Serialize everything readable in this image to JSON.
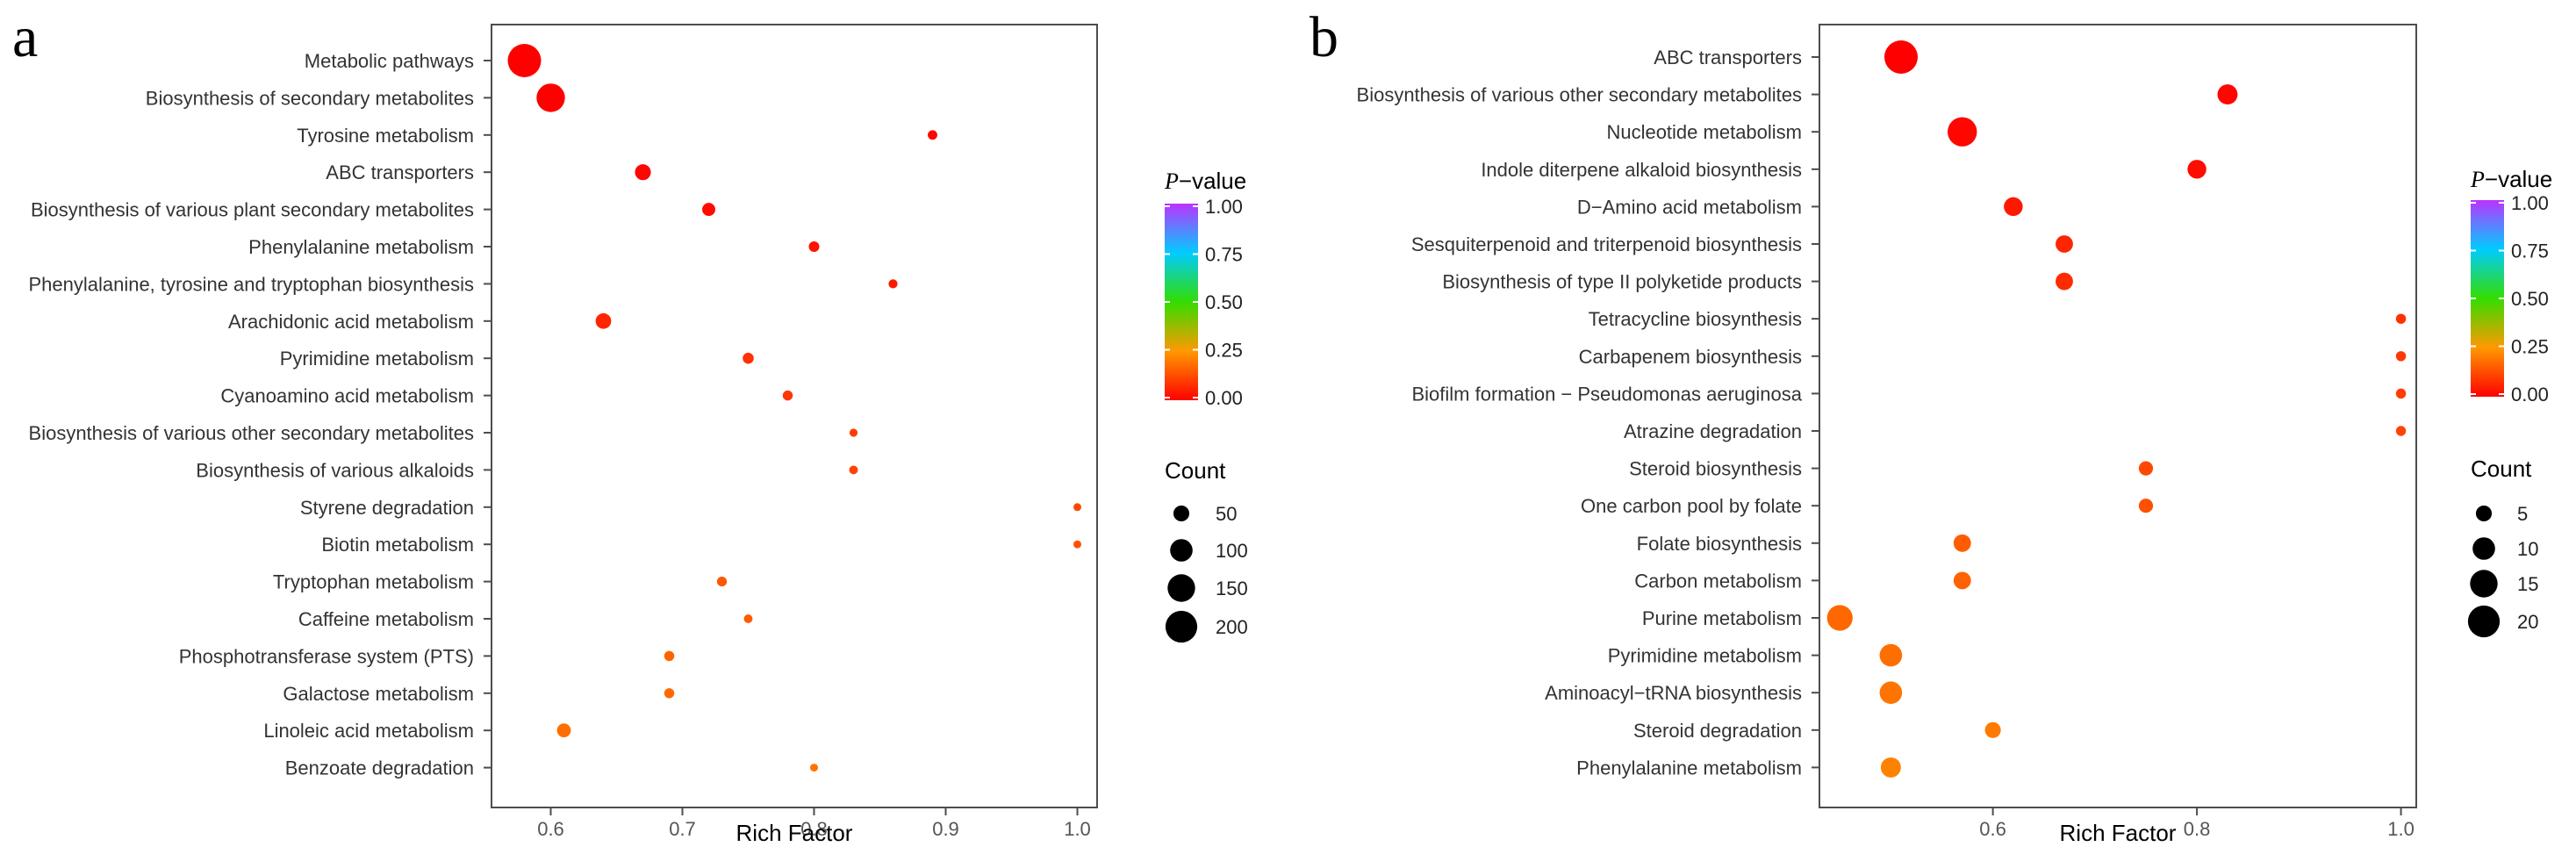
{
  "colors": {
    "scale_stops": [
      {
        "v": 0.0,
        "c": "#ff0000"
      },
      {
        "v": 0.25,
        "c": "#ff9900"
      },
      {
        "v": 0.5,
        "c": "#33dd00"
      },
      {
        "v": 0.75,
        "c": "#00ccff"
      },
      {
        "v": 1.0,
        "c": "#bb33ff"
      }
    ]
  },
  "chart_data": [
    {
      "panel": "a",
      "type": "scatter",
      "xlabel": "Rich Factor",
      "xlim": [
        0.555,
        1.015
      ],
      "xticks": [
        "0.6",
        "0.7",
        "0.8",
        "0.9",
        "1.0"
      ],
      "xtick_values": [
        0.6,
        0.7,
        0.8,
        0.9,
        1.0
      ],
      "legend_color_title_italic": "P",
      "legend_color_title_rest": "−value",
      "legend_color_ticks": [
        "1.00",
        "0.75",
        "0.50",
        "0.25",
        "0.00"
      ],
      "legend_size_title": "Count",
      "legend_size_entries": [
        {
          "label": "50",
          "value": 50
        },
        {
          "label": "100",
          "value": 100
        },
        {
          "label": "150",
          "value": 150
        },
        {
          "label": "200",
          "value": 200
        }
      ],
      "count_max": 220,
      "points": [
        {
          "term": "Metabolic pathways",
          "rich_factor": 0.58,
          "count": 220,
          "p_value": 0.0
        },
        {
          "term": "Biosynthesis of secondary metabolites",
          "rich_factor": 0.6,
          "count": 160,
          "p_value": 0.0
        },
        {
          "term": "Tyrosine metabolism",
          "rich_factor": 0.89,
          "count": 18,
          "p_value": 0.01
        },
        {
          "term": "ABC transporters",
          "rich_factor": 0.67,
          "count": 50,
          "p_value": 0.01
        },
        {
          "term": "Biosynthesis of various plant secondary metabolites",
          "rich_factor": 0.72,
          "count": 34,
          "p_value": 0.02
        },
        {
          "term": "Phenylalanine metabolism",
          "rich_factor": 0.8,
          "count": 22,
          "p_value": 0.03
        },
        {
          "term": "Phenylalanine, tyrosine and tryptophan biosynthesis",
          "rich_factor": 0.86,
          "count": 16,
          "p_value": 0.04
        },
        {
          "term": "Arachidonic acid metabolism",
          "rich_factor": 0.64,
          "count": 48,
          "p_value": 0.06
        },
        {
          "term": "Pyrimidine metabolism",
          "rich_factor": 0.75,
          "count": 24,
          "p_value": 0.08
        },
        {
          "term": "Cyanoamino acid metabolism",
          "rich_factor": 0.78,
          "count": 20,
          "p_value": 0.09
        },
        {
          "term": "Biosynthesis of various other secondary metabolites",
          "rich_factor": 0.83,
          "count": 13,
          "p_value": 0.1
        },
        {
          "term": "Biosynthesis of various alkaloids",
          "rich_factor": 0.83,
          "count": 15,
          "p_value": 0.11
        },
        {
          "term": "Styrene degradation",
          "rich_factor": 1.0,
          "count": 7,
          "p_value": 0.12
        },
        {
          "term": "Biotin metabolism",
          "rich_factor": 1.0,
          "count": 7,
          "p_value": 0.13
        },
        {
          "term": "Tryptophan metabolism",
          "rich_factor": 0.73,
          "count": 19,
          "p_value": 0.14
        },
        {
          "term": "Caffeine metabolism",
          "rich_factor": 0.75,
          "count": 15,
          "p_value": 0.15
        },
        {
          "term": "Phosphotransferase system (PTS)",
          "rich_factor": 0.69,
          "count": 20,
          "p_value": 0.16
        },
        {
          "term": "Galactose metabolism",
          "rich_factor": 0.69,
          "count": 20,
          "p_value": 0.17
        },
        {
          "term": "Linoleic acid metabolism",
          "rich_factor": 0.61,
          "count": 38,
          "p_value": 0.18
        },
        {
          "term": "Benzoate degradation",
          "rich_factor": 0.8,
          "count": 10,
          "p_value": 0.19
        }
      ]
    },
    {
      "panel": "b",
      "type": "scatter",
      "xlabel": "Rich Factor",
      "xlim": [
        0.43,
        1.015
      ],
      "xticks": [
        "0.6",
        "0.8",
        "1.0"
      ],
      "xtick_values": [
        0.6,
        0.8,
        1.0
      ],
      "legend_color_title_italic": "P",
      "legend_color_title_rest": "−value",
      "legend_color_ticks": [
        "1.00",
        "0.75",
        "0.50",
        "0.25",
        "0.00"
      ],
      "legend_size_title": "Count",
      "legend_size_entries": [
        {
          "label": "5",
          "value": 5
        },
        {
          "label": "10",
          "value": 10
        },
        {
          "label": "15",
          "value": 15
        },
        {
          "label": "20",
          "value": 20
        }
      ],
      "count_max": 22,
      "points": [
        {
          "term": "ABC transporters",
          "rich_factor": 0.51,
          "count": 22,
          "p_value": 0.0
        },
        {
          "term": "Biosynthesis of various other secondary metabolites",
          "rich_factor": 0.83,
          "count": 8,
          "p_value": 0.01
        },
        {
          "term": "Nucleotide metabolism",
          "rich_factor": 0.57,
          "count": 17,
          "p_value": 0.01
        },
        {
          "term": "Indole diterpene alkaloid biosynthesis",
          "rich_factor": 0.8,
          "count": 7,
          "p_value": 0.02
        },
        {
          "term": "D−Amino acid metabolism",
          "rich_factor": 0.62,
          "count": 7,
          "p_value": 0.04
        },
        {
          "term": "Sesquiterpenoid and triterpenoid biosynthesis",
          "rich_factor": 0.67,
          "count": 6,
          "p_value": 0.06
        },
        {
          "term": "Biosynthesis of type II polyketide products",
          "rich_factor": 0.67,
          "count": 6,
          "p_value": 0.07
        },
        {
          "term": "Tetracycline biosynthesis",
          "rich_factor": 1.0,
          "count": 2,
          "p_value": 0.08
        },
        {
          "term": "Carbapenem biosynthesis",
          "rich_factor": 1.0,
          "count": 2,
          "p_value": 0.09
        },
        {
          "term": "Biofilm formation − Pseudomonas aeruginosa",
          "rich_factor": 1.0,
          "count": 2,
          "p_value": 0.1
        },
        {
          "term": "Atrazine degradation",
          "rich_factor": 1.0,
          "count": 2,
          "p_value": 0.11
        },
        {
          "term": "Steroid biosynthesis",
          "rich_factor": 0.75,
          "count": 4,
          "p_value": 0.12
        },
        {
          "term": "One carbon pool by folate",
          "rich_factor": 0.75,
          "count": 4,
          "p_value": 0.13
        },
        {
          "term": "Folate biosynthesis",
          "rich_factor": 0.57,
          "count": 6,
          "p_value": 0.15
        },
        {
          "term": "Carbon metabolism",
          "rich_factor": 0.57,
          "count": 6,
          "p_value": 0.16
        },
        {
          "term": "Purine metabolism",
          "rich_factor": 0.45,
          "count": 13,
          "p_value": 0.17
        },
        {
          "term": "Pyrimidine metabolism",
          "rich_factor": 0.5,
          "count": 10,
          "p_value": 0.18
        },
        {
          "term": "Aminoacyl−tRNA biosynthesis",
          "rich_factor": 0.5,
          "count": 10,
          "p_value": 0.19
        },
        {
          "term": "Steroid degradation",
          "rich_factor": 0.6,
          "count": 5,
          "p_value": 0.2
        },
        {
          "term": "Phenylalanine metabolism",
          "rich_factor": 0.5,
          "count": 8,
          "p_value": 0.21
        }
      ]
    }
  ]
}
